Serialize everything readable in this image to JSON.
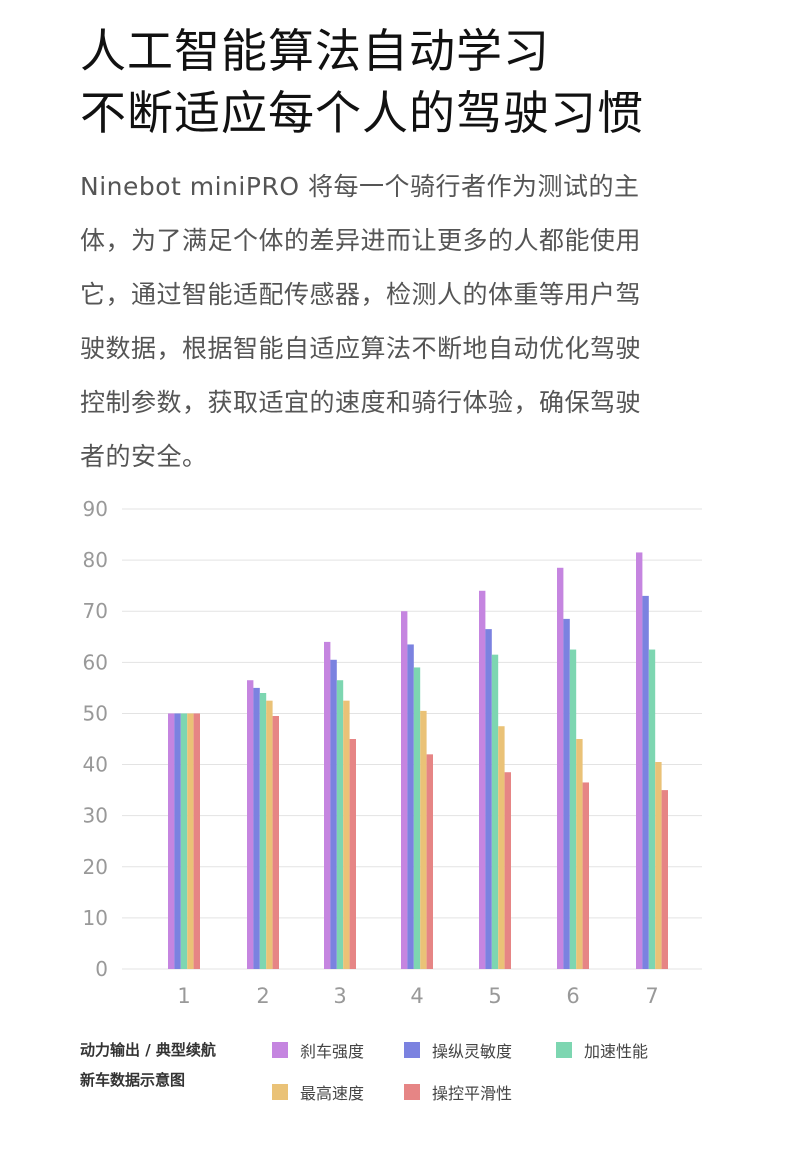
{
  "headline": {
    "line1": "人工智能算法自动学习",
    "line2": "不断适应每个人的驾驶习惯"
  },
  "body": {
    "lines": [
      "Ninebot miniPRO 将每一个骑行者作为测试的主",
      "体，为了满足个体的差异进而让更多的人都能使用",
      "它，通过智能适配传感器，检测人的体重等用户驾",
      "驶数据，根据智能自适应算法不断地自动优化驾驶",
      "控制参数，获取适宜的速度和骑行体验，确保驾驶",
      "者的安全。"
    ]
  },
  "legend_caption": {
    "line1": "动力输出 / 典型续航",
    "line2": "新车数据示意图"
  },
  "chart_data": {
    "type": "bar",
    "categories": [
      "1",
      "2",
      "3",
      "4",
      "5",
      "6",
      "7"
    ],
    "ylim": [
      0,
      90
    ],
    "yticks": [
      0,
      10,
      20,
      30,
      40,
      50,
      60,
      70,
      80,
      90
    ],
    "grid": true,
    "legend_placement": "bottom",
    "series": [
      {
        "name": "刹车强度",
        "color": "#c585e0",
        "values": [
          50,
          56.5,
          64,
          70,
          74,
          78.5,
          81.5
        ]
      },
      {
        "name": "操纵灵敏度",
        "color": "#7b82e0",
        "values": [
          50,
          55,
          60.5,
          63.5,
          66.5,
          68.5,
          73
        ]
      },
      {
        "name": "加速性能",
        "color": "#7dd6b1",
        "values": [
          50,
          54,
          56.5,
          59,
          61.5,
          62.5,
          62.5
        ]
      },
      {
        "name": "最高速度",
        "color": "#eac277",
        "values": [
          50,
          52.5,
          52.5,
          50.5,
          47.5,
          45,
          40.5
        ]
      },
      {
        "name": "操控平滑性",
        "color": "#e68585",
        "values": [
          50,
          49.5,
          45,
          42,
          38.5,
          36.5,
          35
        ]
      }
    ]
  }
}
